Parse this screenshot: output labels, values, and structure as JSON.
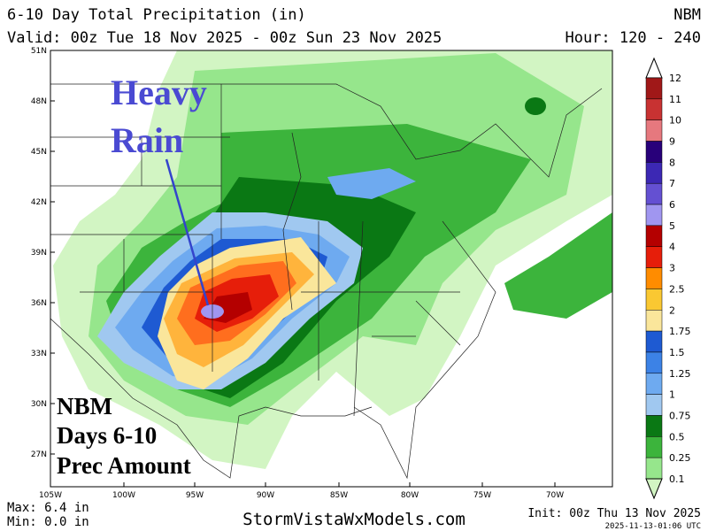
{
  "header": {
    "title": "6-10 Day Total Precipitation (in)",
    "source": "NBM",
    "valid": "Valid: 00z Tue 18 Nov 2025 - 00z Sun 23 Nov 2025",
    "hour": "Hour: 120 - 240"
  },
  "lat_labels": [
    "51N",
    "48N",
    "45N",
    "42N",
    "39N",
    "36N",
    "33N",
    "30N",
    "27N"
  ],
  "lon_labels": [
    "105W",
    "100W",
    "95W",
    "90W",
    "85W",
    "80W",
    "75W",
    "70W"
  ],
  "annotations": {
    "heavy_rain": [
      "Heavy",
      "Rain"
    ],
    "model_box": [
      "NBM",
      "Days 6-10",
      "Prec Amount"
    ]
  },
  "legend": {
    "levels": [
      12,
      11,
      10,
      9,
      8,
      7,
      6,
      5,
      4,
      3,
      2.5,
      2,
      1.75,
      1.5,
      1.25,
      1,
      0.75,
      0.5,
      0.25,
      0.1
    ],
    "colors": [
      "#a01818",
      "#c83232",
      "#e6787e",
      "#28007a",
      "#3c28b4",
      "#6450d2",
      "#a096f0",
      "#b40000",
      "#e61e0a",
      "#ff8c00",
      "#fac832",
      "#fae69b",
      "#1e5ad2",
      "#3c82e6",
      "#6eaaf0",
      "#a0c8f0",
      "#0a7814",
      "#3cb43c",
      "#96e68c",
      "#d2f5c3"
    ]
  },
  "footer": {
    "max": "Max: 6.4 in",
    "min": "Min: 0.0 in",
    "site": "StormVistaWxModels.com",
    "init": "Init: 00z Thu 13 Nov 2025",
    "stamp": "2025-11-13-01:06 UTC"
  }
}
